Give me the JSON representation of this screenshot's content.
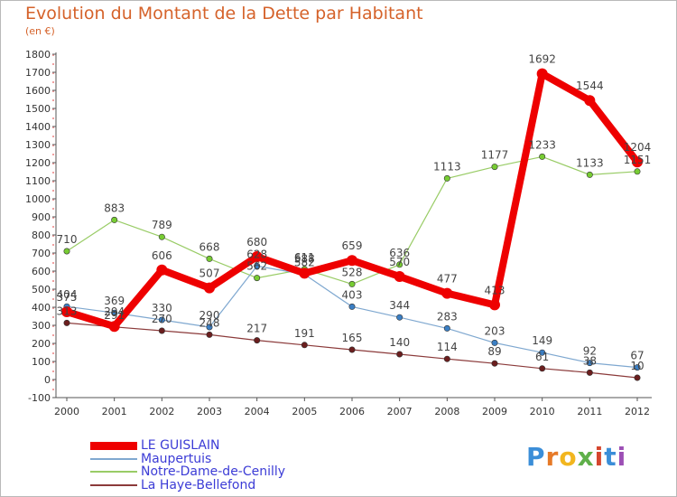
{
  "title": "Evolution du Montant de la Dette par Habitant",
  "subtitle": "(en €)",
  "brand": {
    "text": "Proxiti",
    "letters": [
      {
        "ch": "P",
        "color": "#3b8ed8"
      },
      {
        "ch": "r",
        "color": "#e67a28"
      },
      {
        "ch": "o",
        "color": "#f2b61f"
      },
      {
        "ch": "x",
        "color": "#5fb04a"
      },
      {
        "ch": "i",
        "color": "#d5462e"
      },
      {
        "ch": "t",
        "color": "#3b8ed8"
      },
      {
        "ch": "i",
        "color": "#9c4fb5"
      }
    ]
  },
  "chart_data": {
    "type": "line",
    "title": "Evolution du Montant de la Dette par Habitant",
    "subtitle": "(en €)",
    "xlabel": "",
    "ylabel": "",
    "ylim": [
      -100,
      1800
    ],
    "y_ticks": [
      "-100",
      "0",
      "100",
      "200",
      "300",
      "400",
      "500",
      "600",
      "700",
      "800",
      "900",
      "1000",
      "1100",
      "1200",
      "1300",
      "1400",
      "1500",
      "1600",
      "1700",
      "1800"
    ],
    "categories": [
      "2000",
      "2001",
      "2002",
      "2003",
      "2004",
      "2005",
      "2006",
      "2007",
      "2008",
      "2009",
      "2010",
      "2011",
      "2012"
    ],
    "grid": false,
    "legend_position": "bottom-left",
    "series": [
      {
        "name": "Notre-Dame-de-Cenilly",
        "color": "#99cc66",
        "marker": "#77cc33",
        "width": 1.2,
        "values": [
          710,
          883,
          789,
          668,
          562,
          611,
          528,
          636,
          1113,
          1177,
          1233,
          1133,
          1151
        ],
        "labels": [
          "710",
          "883",
          "789",
          "668",
          "562",
          "611",
          "528",
          "636",
          "1113",
          "1177",
          "1233",
          "1133",
          "1151"
        ]
      },
      {
        "name": "Maupertuis",
        "color": "#7fa8d0",
        "marker": "#3b7fc4",
        "width": 1.2,
        "values": [
          404,
          369,
          330,
          290,
          628,
          582,
          403,
          344,
          283,
          203,
          149,
          92,
          67
        ],
        "labels": [
          "404",
          "369",
          "330",
          "290",
          "628",
          "582",
          "403",
          "344",
          "283",
          "203",
          "149",
          "92",
          "67"
        ]
      },
      {
        "name": "La Haye-Bellefond",
        "color": "#8b3a3a",
        "marker": "#6b1e1e",
        "width": 1.2,
        "values": [
          313,
          291,
          270,
          248,
          217,
          191,
          165,
          140,
          114,
          89,
          61,
          38,
          10
        ],
        "labels": [
          "313",
          "291",
          "270",
          "248",
          "217",
          "191",
          "165",
          "140",
          "114",
          "89",
          "61",
          "38",
          "10"
        ]
      },
      {
        "name": "LE GUISLAIN",
        "color": "#ee0000",
        "marker": "#ee0000",
        "width": 8,
        "values": [
          375,
          294,
          606,
          507,
          680,
          588,
          659,
          570,
          477,
          413,
          1692,
          1544,
          1204
        ],
        "labels": [
          "375",
          "294",
          "606",
          "507",
          "680",
          "588",
          "659",
          "570",
          "477",
          "413",
          "1692",
          "1544",
          "1204"
        ]
      }
    ]
  },
  "legend": [
    {
      "label": "LE GUISLAIN",
      "color": "#ee0000",
      "thickness": 9
    },
    {
      "label": "Maupertuis",
      "color": "#7fa8d0",
      "thickness": 2
    },
    {
      "label": "Notre-Dame-de-Cenilly",
      "color": "#99cc66",
      "thickness": 2
    },
    {
      "label": "La Haye-Bellefond",
      "color": "#8b3a3a",
      "thickness": 2
    }
  ]
}
